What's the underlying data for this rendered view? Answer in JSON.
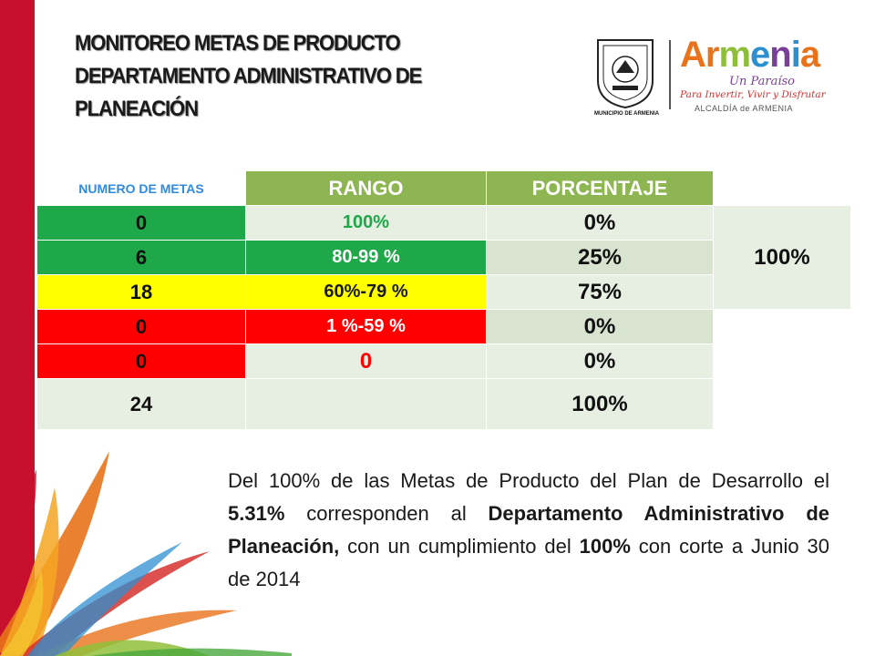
{
  "title": {
    "line1": "MONITOREO METAS DE PRODUCTO",
    "line2": "DEPARTAMENTO ADMINISTRATIVO DE",
    "line3": "PLANEACIÓN"
  },
  "logos": {
    "seal_caption": "MUNICIPIO DE ARMENIA",
    "brand_letters": [
      "Ar",
      "m",
      "e",
      "n",
      "i",
      "a"
    ],
    "brand_tagline": "Un Paraíso",
    "brand_slogan": "Para Invertir, Vivir y Disfrutar",
    "brand_footer": "ALCALDÍA de ARMENIA"
  },
  "table": {
    "headers": [
      "NUMERO DE METAS",
      "RANGO",
      "PORCENTAJE"
    ],
    "rows": [
      {
        "count": "0",
        "range": "100%",
        "percent": "0%",
        "status": "green"
      },
      {
        "count": "6",
        "range": "80-99  %",
        "percent": "25%",
        "status": "green"
      },
      {
        "count": "18",
        "range": "60%-79 %",
        "percent": "75%",
        "status": "yellow"
      },
      {
        "count": "0",
        "range": "1  %-59 %",
        "percent": "0%",
        "status": "red"
      },
      {
        "count": "0",
        "range": "0",
        "percent": "0%",
        "status": "red"
      }
    ],
    "total": {
      "count": "24",
      "range": "",
      "percent": "100%"
    },
    "side_total": "100%"
  },
  "paragraph": {
    "p1": "Del 100% de las Metas de Producto del Plan de Desarrollo el ",
    "b1": "5.31%",
    "p2": " corresponden al ",
    "b2": "Departamento Administrativo de Planeación,",
    "p3": " con un cumplimiento del  ",
    "b3": "100%",
    "p4": " con corte a Junio 30 de 2014"
  },
  "colors": {
    "accent_red": "#c8102e",
    "header_green": "#8db552",
    "status_green": "#1ea84a",
    "status_yellow": "#ffff00",
    "status_red": "#ff0000"
  }
}
